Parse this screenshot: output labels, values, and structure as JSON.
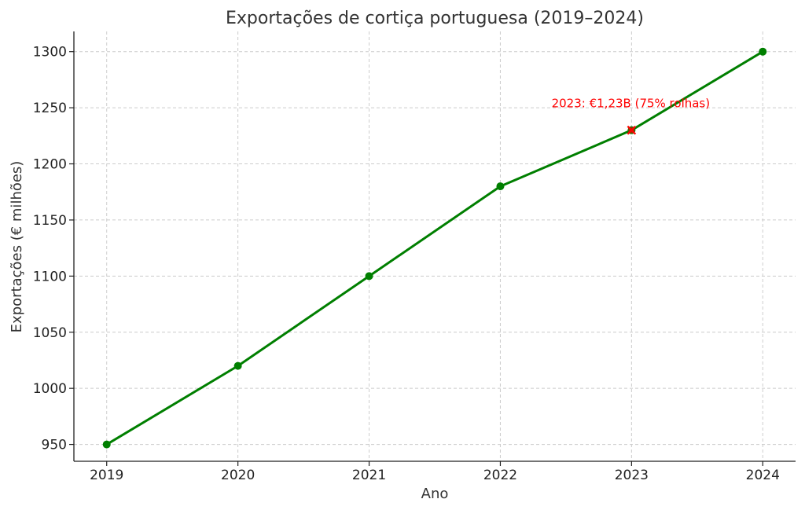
{
  "chart_data": {
    "type": "line",
    "title": "Exportações de cortiça portuguesa (2019–2024)",
    "xlabel": "Ano",
    "ylabel": "Exportações (€ milhões)",
    "x": [
      "2019",
      "2020",
      "2021",
      "2022",
      "2023",
      "2024"
    ],
    "series": [
      {
        "values": [
          950,
          1020,
          1100,
          1180,
          1230,
          1300
        ]
      }
    ],
    "xlim": [
      2018.75,
      2024.25
    ],
    "ylim": [
      935,
      1318
    ],
    "yticks": [
      950,
      1000,
      1050,
      1100,
      1150,
      1200,
      1250,
      1300
    ],
    "grid": true,
    "colors": {
      "line": "#007f00",
      "marker": "#007f00",
      "highlight": "#ff0000",
      "highlight_fill": "#8b3a00"
    },
    "annotation": {
      "text": "2023: €1,23B (75% rolhas)",
      "x": "2023",
      "y": 1230
    }
  }
}
